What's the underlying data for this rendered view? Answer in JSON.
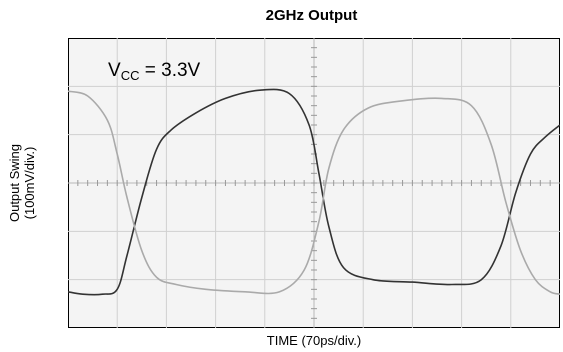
{
  "chart_data": {
    "type": "line",
    "title": "2GHz Output",
    "xlabel": "TIME (70ps/div.)",
    "ylabel_line1": "Output Swing",
    "ylabel_line2": "(100mV/div.)",
    "annotation": {
      "main": "V",
      "sub": "CC",
      "rest": " = 3.3V"
    },
    "x_divisions": 10,
    "y_divisions": 6,
    "xlim": [
      0,
      10
    ],
    "ylim": [
      -3,
      3
    ],
    "grid": true,
    "series": [
      {
        "color": "#333333",
        "x": [
          0,
          0.3,
          0.7,
          1.0,
          1.2,
          1.5,
          1.8,
          2.1,
          2.6,
          3.2,
          3.9,
          4.5,
          4.9,
          5.1,
          5.3,
          5.6,
          6.2,
          7.0,
          7.8,
          8.4,
          8.8,
          9.1,
          9.4,
          9.7,
          10.0
        ],
        "values": [
          -2.25,
          -2.3,
          -2.3,
          -2.2,
          -1.5,
          -0.3,
          0.7,
          1.1,
          1.45,
          1.75,
          1.92,
          1.85,
          1.2,
          0.2,
          -0.9,
          -1.75,
          -2.0,
          -2.05,
          -2.1,
          -2.0,
          -1.3,
          -0.2,
          0.6,
          0.95,
          1.2
        ]
      },
      {
        "color": "#aaaaaa",
        "x": [
          0,
          0.4,
          0.8,
          1.0,
          1.2,
          1.5,
          1.8,
          2.2,
          2.8,
          3.6,
          4.3,
          4.8,
          5.1,
          5.3,
          5.6,
          6.1,
          6.8,
          7.6,
          8.2,
          8.6,
          8.9,
          9.2,
          9.5,
          9.8,
          10.0
        ],
        "values": [
          1.9,
          1.8,
          1.3,
          0.6,
          -0.3,
          -1.4,
          -1.95,
          -2.1,
          -2.2,
          -2.25,
          -2.25,
          -1.8,
          -0.8,
          0.3,
          1.1,
          1.55,
          1.7,
          1.75,
          1.6,
          0.8,
          -0.4,
          -1.4,
          -2.0,
          -2.25,
          -2.3
        ]
      }
    ]
  }
}
